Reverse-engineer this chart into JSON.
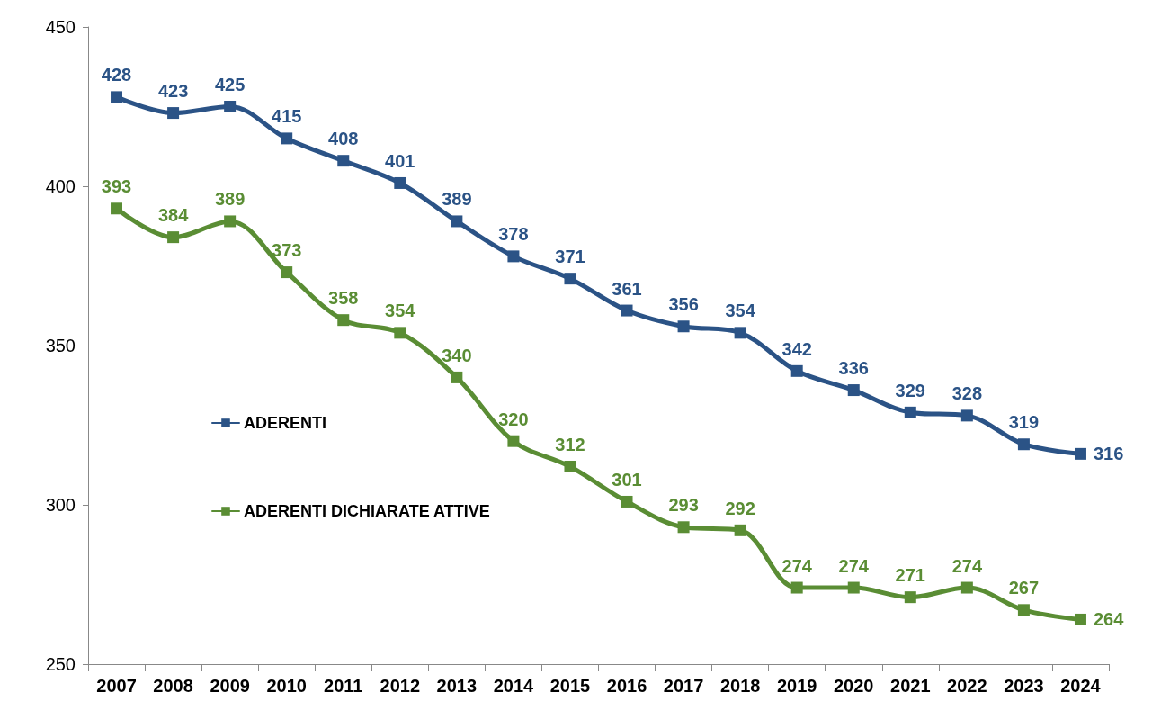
{
  "chart_data": {
    "type": "line",
    "categories": [
      "2007",
      "2008",
      "2009",
      "2010",
      "2011",
      "2012",
      "2013",
      "2014",
      "2015",
      "2016",
      "2017",
      "2018",
      "2019",
      "2020",
      "2021",
      "2022",
      "2023",
      "2024"
    ],
    "series": [
      {
        "name": "ADERENTI",
        "color": "#2b5386",
        "values": [
          428,
          423,
          425,
          415,
          408,
          401,
          389,
          378,
          371,
          361,
          356,
          354,
          342,
          336,
          329,
          328,
          319,
          316
        ]
      },
      {
        "name": "ADERENTI DICHIARATE ATTIVE",
        "color": "#5a8d34",
        "values": [
          393,
          384,
          389,
          373,
          358,
          354,
          340,
          320,
          312,
          301,
          293,
          292,
          274,
          274,
          271,
          274,
          267,
          264
        ]
      }
    ],
    "ylim": [
      250,
      450
    ],
    "yticks": [
      250,
      300,
      350,
      400,
      450
    ],
    "grid": false,
    "legend": "left",
    "marker": "square",
    "line_style": "solid",
    "data_labels": true
  }
}
